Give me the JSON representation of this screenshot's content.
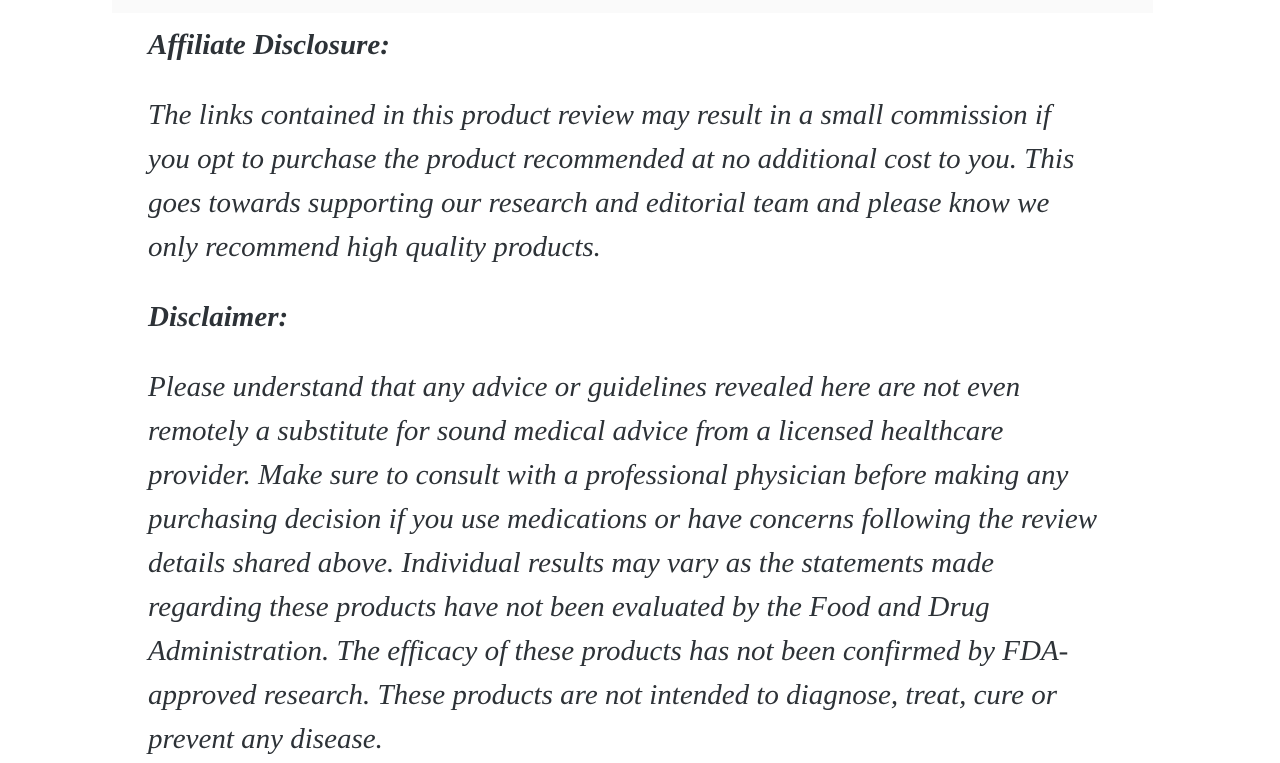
{
  "page": {
    "background_color": "#ffffff",
    "text_color": "#2d3237",
    "top_edge_color": "#fafafa"
  },
  "article": {
    "affiliate_heading": "Affiliate Disclosure:",
    "affiliate_paragraph_lines": [
      "The links contained in this product review may result in a small commission if",
      "you opt to purchase the product recommended at no additional cost to you. This",
      "goes towards supporting our research and editorial team and please know we",
      "only recommend high quality products."
    ],
    "disclaimer_heading": "Disclaimer:",
    "disclaimer_paragraph_lines": [
      "Please understand that any advice or guidelines revealed here are not even",
      "remotely a substitute for sound medical advice from a licensed healthcare",
      "provider. Make sure to consult with a professional physician before making any",
      "purchasing decision if you use medications or have concerns following the review",
      "details shared above. Individual results may vary as the statements made",
      "regarding these products have not been evaluated by the Food and Drug",
      "Administration. The efficacy of these products has not been confirmed by FDA-",
      "approved research. These products are not intended to diagnose, treat, cure or",
      "prevent any disease."
    ]
  }
}
